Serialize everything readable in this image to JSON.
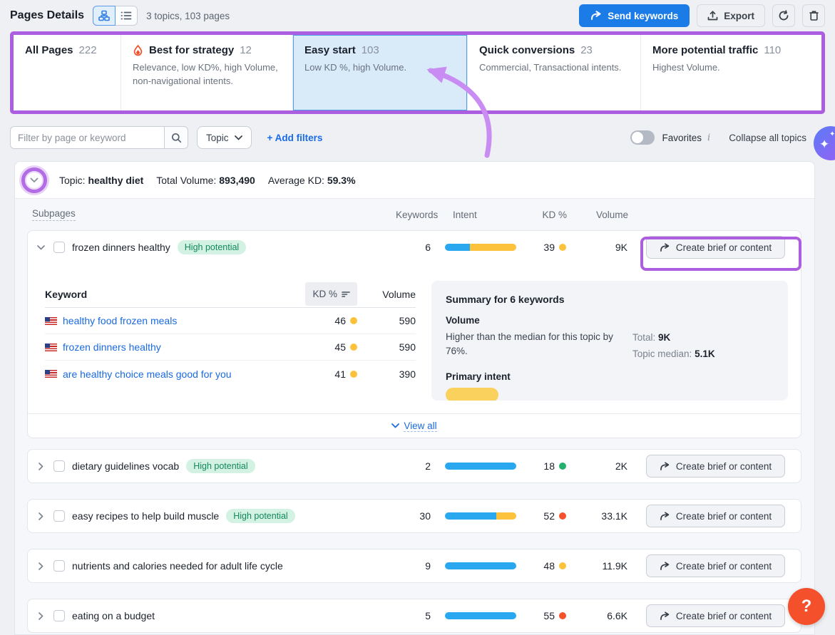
{
  "header": {
    "title": "Pages Details",
    "meta": "3 topics, 103 pages",
    "send_keywords_label": "Send keywords",
    "export_label": "Export"
  },
  "tabs": {
    "items": [
      {
        "label": "All Pages",
        "count": "222",
        "desc": ""
      },
      {
        "label": "Best for strategy",
        "count": "12",
        "desc": "Relevance, low KD%, high Volume, non-navigational intents."
      },
      {
        "label": "Easy start",
        "count": "103",
        "desc": "Low KD %, high Volume."
      },
      {
        "label": "Quick conversions",
        "count": "23",
        "desc": "Commercial, Transactional intents."
      },
      {
        "label": "More potential traffic",
        "count": "110",
        "desc": "Highest Volume."
      }
    ]
  },
  "filter_bar": {
    "search_placeholder": "Filter by page or keyword",
    "topic_dropdown": "Topic",
    "add_filters": "+ Add filters",
    "favorites_label": "Favorites",
    "info_icon": "i",
    "collapse_label": "Collapse all topics"
  },
  "topic": {
    "label": "Topic:",
    "name": "healthy diet",
    "total_volume_label": "Total Volume:",
    "total_volume": "893,490",
    "avg_kd_label": "Average KD:",
    "avg_kd": "59.3%"
  },
  "table": {
    "headers": {
      "subpages": "Subpages",
      "keywords": "Keywords",
      "intent": "Intent",
      "kd": "KD %",
      "volume": "Volume"
    },
    "badge_label": "High potential",
    "create_label": "Create brief or content",
    "rows": [
      {
        "name": "frozen dinners healthy",
        "badge": true,
        "keywords": "6",
        "intent": [
          {
            "color": "#29a8f0",
            "pct": 35
          },
          {
            "color": "#fdc23c",
            "pct": 65
          }
        ],
        "kd": "39",
        "kd_dot": "#fdc23c",
        "volume": "9K"
      },
      {
        "name": "dietary guidelines vocab",
        "badge": true,
        "keywords": "2",
        "intent": [
          {
            "color": "#29a8f0",
            "pct": 100
          }
        ],
        "kd": "18",
        "kd_dot": "#25b06e",
        "volume": "2K"
      },
      {
        "name": "easy recipes to help build muscle",
        "badge": true,
        "keywords": "30",
        "intent": [
          {
            "color": "#29a8f0",
            "pct": 72
          },
          {
            "color": "#fdc23c",
            "pct": 28
          }
        ],
        "kd": "52",
        "kd_dot": "#f4512c",
        "volume": "33.1K"
      },
      {
        "name": "nutrients and calories needed for adult life cycle",
        "badge": false,
        "keywords": "9",
        "intent": [
          {
            "color": "#29a8f0",
            "pct": 100
          }
        ],
        "kd": "48",
        "kd_dot": "#fdc23c",
        "volume": "11.9K"
      },
      {
        "name": "eating on a budget",
        "badge": false,
        "keywords": "5",
        "intent": [
          {
            "color": "#29a8f0",
            "pct": 100
          }
        ],
        "kd": "55",
        "kd_dot": "#f4512c",
        "volume": "6.6K"
      }
    ]
  },
  "keyword_table": {
    "headers": {
      "keyword": "Keyword",
      "kd": "KD %",
      "volume": "Volume"
    },
    "rows": [
      {
        "keyword": "healthy food frozen meals",
        "kd": "46",
        "kd_dot": "#fdc23c",
        "volume": "590"
      },
      {
        "keyword": "frozen dinners healthy",
        "kd": "45",
        "kd_dot": "#fdc23c",
        "volume": "590"
      },
      {
        "keyword": "are healthy choice meals good for you",
        "kd": "41",
        "kd_dot": "#fdc23c",
        "volume": "390"
      }
    ],
    "view_all": "View all"
  },
  "summary": {
    "title": "Summary for 6 keywords",
    "volume_heading": "Volume",
    "volume_text": "Higher than the median for this topic by 76%.",
    "total_label": "Total:",
    "total_value": "9K",
    "median_label": "Topic median:",
    "median_value": "5.1K",
    "intent_heading": "Primary intent"
  },
  "help": {
    "label": "?"
  },
  "annotations": {
    "highlight_color": "#ab5fe0",
    "arrow_color": "#c98cf2"
  }
}
